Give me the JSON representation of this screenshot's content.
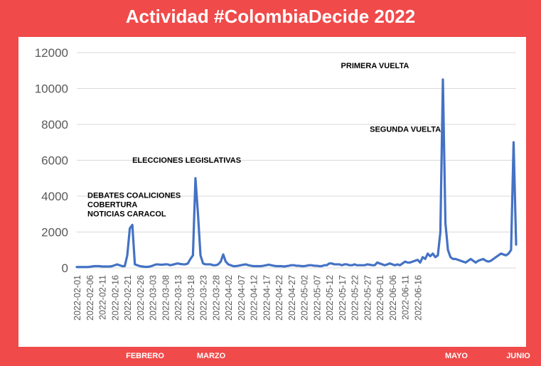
{
  "title": "Actividad #ColombiaDecide 2022",
  "colors": {
    "frame": "#f04a4a",
    "line": "#4472c4",
    "grid": "#d9d9d9",
    "text": "#595959"
  },
  "months": [
    "FEBRERO",
    "MARZO",
    "MAYO",
    "JUNIO"
  ],
  "chart_data": {
    "type": "line",
    "title": "Actividad #ColombiaDecide 2022",
    "xlabel": "",
    "ylabel": "",
    "ylim": [
      0,
      12000
    ],
    "yticks": [
      0,
      2000,
      4000,
      6000,
      8000,
      10000,
      12000
    ],
    "xticks": [
      "2022-02-01",
      "2022-02-06",
      "2022-02-11",
      "2022-02-16",
      "2022-02-21",
      "2022-02-26",
      "2022-03-03",
      "2022-03-08",
      "2022-03-13",
      "2022-03-18",
      "2022-03-23",
      "2022-03-28",
      "2022-04-02",
      "2022-04-07",
      "2022-04-12",
      "2022-04-17",
      "2022-04-22",
      "2022-04-27",
      "2022-05-02",
      "2022-05-07",
      "2022-05-12",
      "2022-05-17",
      "2022-05-22",
      "2022-05-27",
      "2022-06-01",
      "2022-06-06",
      "2022-06-11",
      "2022-06-16"
    ],
    "grid": true,
    "x_start": "2022-02-01",
    "series": [
      {
        "values": [
          50,
          50,
          50,
          50,
          50,
          60,
          80,
          100,
          100,
          100,
          80,
          80,
          80,
          80,
          100,
          150,
          200,
          150,
          100,
          100,
          700,
          2200,
          2400,
          200,
          150,
          100,
          80,
          60,
          60,
          80,
          120,
          180,
          200,
          180,
          180,
          200,
          200,
          150,
          180,
          220,
          250,
          220,
          200,
          200,
          250,
          500,
          700,
          5000,
          3000,
          700,
          250,
          200,
          200,
          200,
          150,
          150,
          200,
          350,
          750,
          350,
          200,
          150,
          100,
          100,
          120,
          150,
          180,
          200,
          150,
          120,
          100,
          100,
          100,
          100,
          120,
          150,
          180,
          150,
          120,
          100,
          100,
          100,
          80,
          100,
          120,
          150,
          150,
          120,
          120,
          100,
          100,
          120,
          150,
          150,
          120,
          120,
          100,
          100,
          150,
          150,
          250,
          250,
          200,
          200,
          200,
          150,
          200,
          200,
          150,
          150,
          200,
          150,
          150,
          150,
          150,
          200,
          180,
          150,
          150,
          300,
          250,
          200,
          150,
          200,
          250,
          200,
          150,
          200,
          150,
          250,
          350,
          300,
          300,
          350,
          400,
          450,
          300,
          600,
          500,
          800,
          650,
          800,
          600,
          700,
          2000,
          10500,
          2500,
          1000,
          600,
          500,
          500,
          450,
          400,
          350,
          300,
          400,
          500,
          400,
          300,
          400,
          450,
          500,
          400,
          350,
          400,
          500,
          600,
          700,
          800,
          750,
          700,
          800,
          1000,
          7000,
          1300
        ]
      }
    ],
    "annotations": [
      {
        "date": "2022-02-21",
        "value": 2400,
        "lines": [
          "DEBATES COALICIONES",
          "COBERTURA",
          "NOTICIAS CARACOL"
        ]
      },
      {
        "date": "2022-03-13",
        "value": 5000,
        "lines": [
          "ELECCIONES LEGISLATIVAS"
        ]
      },
      {
        "date": "2022-05-29",
        "value": 10500,
        "lines": [
          "PRIMERA VUELTA"
        ]
      },
      {
        "date": "2022-06-19",
        "value": 7000,
        "lines": [
          "SEGUNDA VUELTA"
        ]
      }
    ]
  }
}
